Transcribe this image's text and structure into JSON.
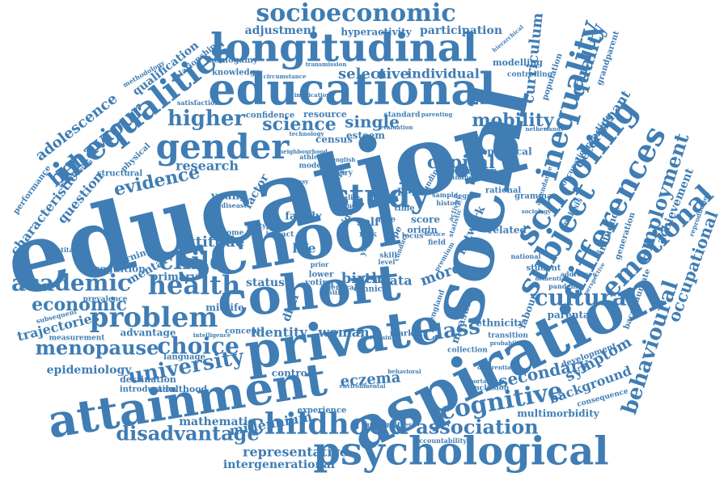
{
  "color": "#3f7db4",
  "words": [
    "education",
    "school",
    "social",
    "aspiration",
    "cohort",
    "private",
    "attainment",
    "educational",
    "psychological",
    "longitudinal",
    "inequalities",
    "gender",
    "schooling",
    "subject",
    "differences",
    "study",
    "childhood",
    "inequality",
    "emotional",
    "cognitive",
    "socioeconomic",
    "problem",
    "health",
    "child",
    "academic",
    "behavioural",
    "behaviour",
    "university",
    "higher",
    "choice",
    "menopause",
    "cultural",
    "employment",
    "association",
    "disadvantage",
    "class",
    "economic",
    "evidence",
    "science",
    "capital",
    "quality",
    "occupational",
    "secondary",
    "mobility",
    "curriculum",
    "adolescence",
    "characteristic",
    "trajectories",
    "identity",
    "woman",
    "attitude",
    "epidemiology",
    "representative",
    "intergenerational",
    "millennium",
    "mathematic",
    "eczema",
    "adjustment",
    "participation",
    "hyperactivity",
    "selective",
    "individual",
    "research",
    "question",
    "determinant",
    "achievement",
    "single",
    "birth",
    "data",
    "more",
    "symptom",
    "background",
    "political",
    "qualification",
    "relationship",
    "knowledge",
    "resource",
    "census",
    "esteem",
    "young",
    "factor",
    "family",
    "network",
    "related",
    "measure",
    "life",
    "mental",
    "primary",
    "cognition",
    "earning",
    "performance",
    "advantage",
    "midlife",
    "parental",
    "ethnicity",
    "labour",
    "reading",
    "influence",
    "generation",
    "baccalaureate",
    "homogamy",
    "modelling",
    "population",
    "grandparent",
    "occupation",
    "controlling",
    "confidence",
    "standard",
    "structural",
    "physical",
    "status",
    "control",
    "destination",
    "adulthood",
    "introduction",
    "multimorbidity",
    "universities",
    "accountability",
    "experience",
    "concept",
    "language",
    "language",
    "market",
    "person",
    "rational",
    "grammar",
    "analysis",
    "development",
    "consequence",
    "transition",
    "collection",
    "conclusion",
    "student",
    "pandemic",
    "paper",
    "score",
    "time",
    "self",
    "role",
    "origin",
    "field",
    "distr",
    "ethnic",
    "general",
    "result",
    "lower",
    "voting",
    "model",
    "binary",
    "skill",
    "risk",
    "theory",
    "income",
    "subtype",
    "earning",
    "national",
    "statistic",
    "funding",
    "degree",
    "prevalence",
    "measurement",
    "subsequent",
    "quantitative",
    "methodology",
    "satisfaction",
    "implication",
    "transmission",
    "hierarchical",
    "circumstance",
    "institutional",
    "attendance",
    "addresses",
    "perspective",
    "reproduction",
    "dementia",
    "intelligence",
    "england",
    "sample",
    "examine",
    "history",
    "athlete",
    "impact",
    "environmental",
    "percentage",
    "stratification",
    "behavioral",
    "uncertain",
    "differential",
    "probability",
    "important",
    "investigation",
    "conservative",
    "neighbourhood",
    "technology",
    "fantasy",
    "wealth",
    "disease",
    "locus",
    "conduct",
    "premium",
    "device",
    "activity",
    "neuroticism",
    "grade",
    "sociology",
    "netherlands",
    "evaluation",
    "parenting",
    "invariance",
    "sensitivity",
    "interval",
    "english",
    "private",
    "gap",
    "idea",
    "year",
    "type",
    "level",
    "prior",
    "pupil",
    "elite",
    "term",
    "test",
    "area",
    "cost",
    "rate"
  ]
}
